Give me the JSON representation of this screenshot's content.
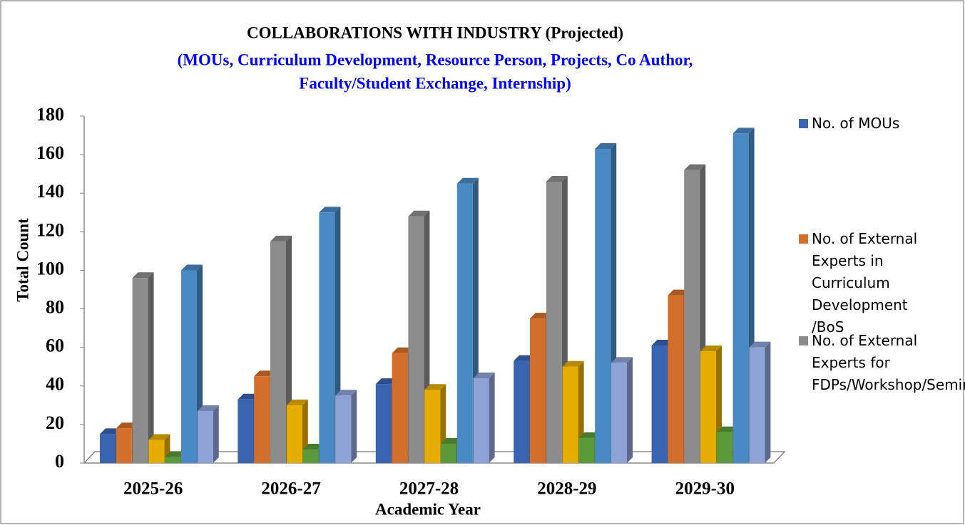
{
  "chart_data": {
    "type": "bar3d",
    "title": "COLLABORATIONS WITH INDUSTRY (Projected)",
    "subtitle": [
      "(MOUs, Curriculum Development, Resource  Person, Projects, Co Author,",
      "Faculty/Student Exchange, Internship)"
    ],
    "y_label": "Total Count",
    "x_label": "Academic Year",
    "categories": [
      "2025-26",
      "2026-27",
      "2027-28",
      "2028-29",
      "2029-30"
    ],
    "series": [
      {
        "name": "No. of  MOUs",
        "color": "#3a63b0",
        "values": [
          15,
          33,
          41,
          53,
          61
        ]
      },
      {
        "name": "No. of External Experts in Curriculum Development /BoS",
        "color": "#d46f2b",
        "values": [
          18,
          45,
          57,
          75,
          87
        ]
      },
      {
        "name": "No. of External Experts for FDPs/Workshop/Seminar",
        "color": "#8c8c8c",
        "values": [
          96,
          115,
          128,
          146,
          152
        ]
      },
      {
        "color": "#e6ad00",
        "values": [
          12,
          30,
          38,
          50,
          58
        ]
      },
      {
        "color": "#5a9a3a",
        "values": [
          3,
          7,
          10,
          13,
          16
        ]
      },
      {
        "color": "#4a8ac4",
        "values": [
          100,
          130,
          145,
          163,
          171
        ]
      },
      {
        "color": "#8fa2d8",
        "values": [
          27,
          35,
          44,
          52,
          60
        ]
      }
    ],
    "ylim": [
      0,
      180
    ],
    "yticks": [
      0,
      20,
      40,
      60,
      80,
      100,
      120,
      140,
      160,
      180
    ],
    "legend": "right"
  }
}
